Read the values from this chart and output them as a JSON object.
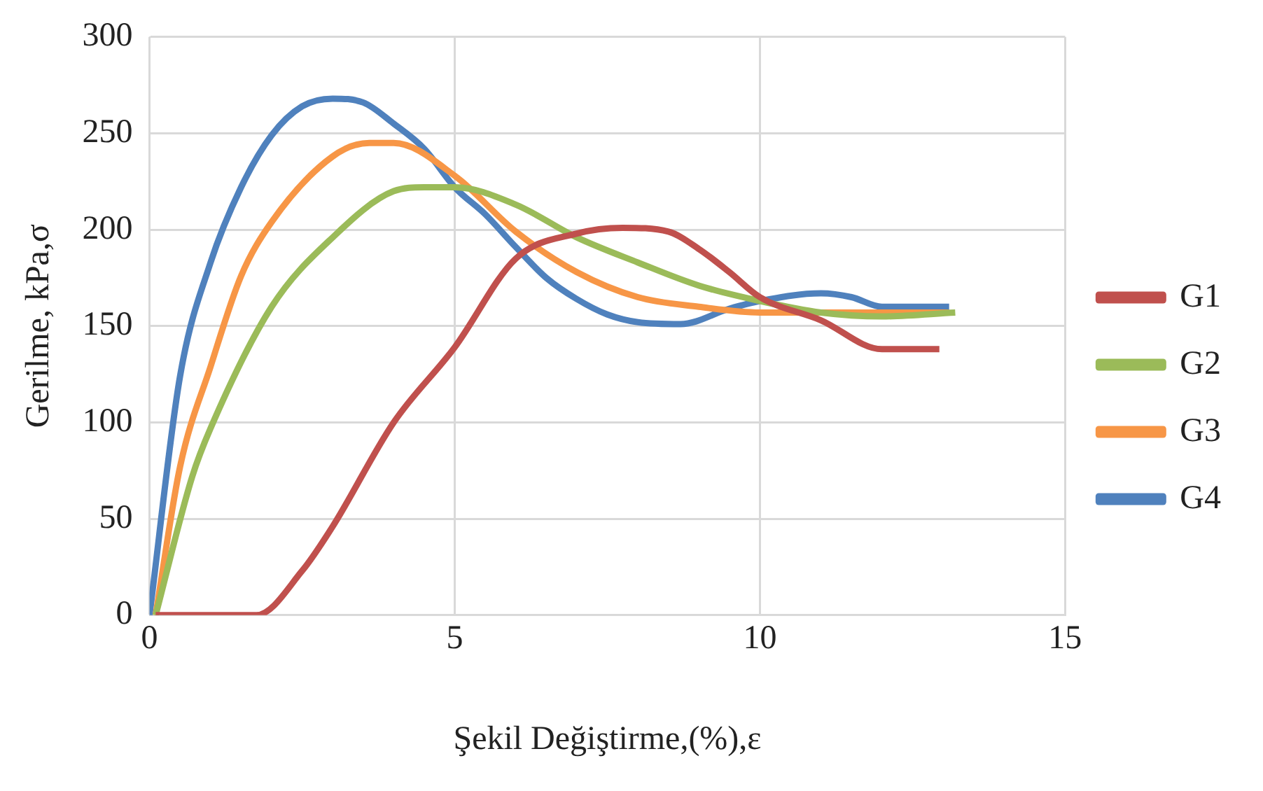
{
  "chart_data": {
    "type": "line",
    "xlabel": "Şekil Değiştirme,(%),ε",
    "ylabel": "Gerilme, kPa,σ",
    "xlim": [
      0,
      15
    ],
    "xticks": [
      0,
      5,
      10,
      15
    ],
    "ylim": [
      0,
      300
    ],
    "yticks": [
      0,
      50,
      100,
      150,
      200,
      250,
      300
    ],
    "grid": true,
    "legend": "right",
    "marker": "none",
    "line_style": "solid",
    "series": [
      {
        "name": "G1",
        "color": "#c0504d",
        "x": [
          0.1,
          1.75,
          2.5,
          3,
          4,
          5,
          6,
          7,
          7.75,
          8.5,
          9,
          9.5,
          10,
          11,
          12,
          12.94
        ],
        "values": [
          0,
          0,
          23,
          46,
          100,
          139,
          185,
          198,
          201,
          199,
          190,
          178,
          165,
          153,
          138,
          138
        ]
      },
      {
        "name": "G2",
        "color": "#9bbb59",
        "x": [
          0.1,
          0.7,
          1,
          2,
          3,
          4,
          4.5,
          5,
          6,
          7,
          8,
          9,
          10,
          11,
          12,
          13.2
        ],
        "values": [
          0,
          72,
          97,
          160,
          196,
          220,
          222,
          222,
          213,
          196,
          183,
          171,
          163,
          157,
          155,
          157
        ]
      },
      {
        "name": "G3",
        "color": "#f79646",
        "x": [
          0.1,
          0.5,
          1,
          1.5,
          2,
          3,
          3.6,
          4,
          5,
          6,
          7,
          8,
          9,
          10,
          11,
          12,
          13.1
        ],
        "values": [
          0,
          77,
          129,
          176,
          204,
          238,
          245,
          245,
          228,
          199,
          178,
          165,
          160,
          157,
          157,
          157,
          157
        ]
      },
      {
        "name": "G4",
        "color": "#4f81bd",
        "x": [
          0,
          0.5,
          1,
          1.5,
          2,
          2.5,
          3,
          3.5,
          4,
          4.5,
          5,
          5.5,
          6,
          6.5,
          7,
          7.5,
          8,
          8.7,
          9.5,
          10,
          11,
          11.5,
          12,
          13.1
        ],
        "values": [
          0,
          124,
          183,
          222,
          249,
          264,
          268,
          266,
          255,
          242,
          222,
          208,
          191,
          175,
          164,
          156,
          152,
          151,
          159,
          163,
          167,
          165,
          160,
          160
        ]
      }
    ]
  }
}
